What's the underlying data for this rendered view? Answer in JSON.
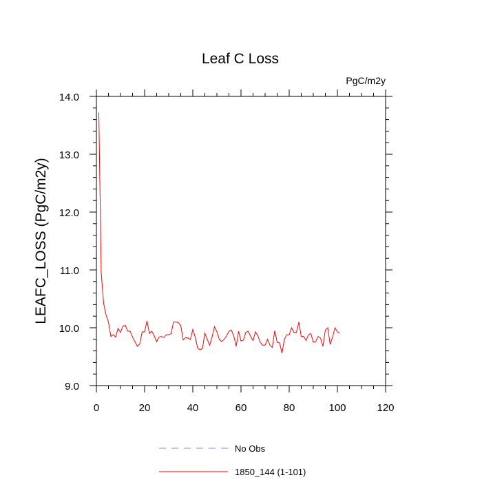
{
  "chart_data": {
    "type": "line",
    "title": "Leaf C Loss",
    "subtitle_right": "PgC/m2y",
    "xlabel": "",
    "ylabel": "LEAFC_LOSS  (PgC/m2y)",
    "xlim": [
      0,
      120
    ],
    "ylim": [
      9.0,
      14.0
    ],
    "xticks": [
      0,
      20,
      40,
      60,
      80,
      100,
      120
    ],
    "xtick_labels": [
      "0",
      "20",
      "40",
      "60",
      "80",
      "100",
      "120"
    ],
    "yticks": [
      9.0,
      10.0,
      11.0,
      12.0,
      13.0,
      14.0
    ],
    "ytick_labels": [
      "9.0",
      "10.0",
      "11.0",
      "12.0",
      "13.0",
      "14.0"
    ],
    "grid": false,
    "legend_position": "bottom",
    "series": [
      {
        "name": "No Obs",
        "color": "#8080ff",
        "dash": "dashed",
        "x": [],
        "y": []
      },
      {
        "name": "1850_144 (1-101)",
        "color": "#ff0000",
        "dash": "solid",
        "x": [
          1,
          2,
          3,
          4,
          5,
          6,
          7,
          8,
          9,
          10,
          11,
          12,
          13,
          14,
          15,
          16,
          17,
          18,
          19,
          20,
          21,
          22,
          23,
          24,
          25,
          26,
          27,
          28,
          29,
          30,
          31,
          32,
          33,
          34,
          35,
          36,
          37,
          38,
          39,
          40,
          41,
          42,
          43,
          44,
          45,
          46,
          47,
          48,
          49,
          50,
          51,
          52,
          53,
          54,
          55,
          56,
          57,
          58,
          59,
          60,
          61,
          62,
          63,
          64,
          65,
          66,
          67,
          68,
          69,
          70,
          71,
          72,
          73,
          74,
          75,
          76,
          77,
          78,
          79,
          80,
          81,
          82,
          83,
          84,
          85,
          86,
          87,
          88,
          89,
          90,
          91,
          92,
          93,
          94,
          95,
          96,
          97,
          98,
          99,
          100,
          101
        ],
        "y": [
          13.72,
          10.95,
          10.42,
          10.22,
          10.1,
          9.85,
          9.88,
          9.84,
          9.99,
          9.92,
          10.03,
          10.04,
          9.94,
          9.94,
          9.84,
          9.76,
          9.68,
          9.72,
          9.93,
          9.93,
          10.12,
          9.9,
          9.94,
          9.86,
          9.76,
          9.84,
          9.85,
          9.83,
          9.88,
          9.88,
          9.9,
          10.1,
          10.1,
          10.09,
          10.04,
          9.79,
          9.83,
          9.82,
          9.8,
          9.97,
          9.84,
          9.65,
          9.62,
          9.64,
          9.91,
          9.8,
          9.7,
          9.84,
          10.02,
          9.93,
          9.8,
          9.76,
          9.8,
          9.86,
          9.94,
          9.96,
          9.86,
          9.68,
          9.94,
          9.77,
          9.79,
          9.92,
          9.94,
          9.85,
          9.78,
          9.93,
          9.86,
          9.75,
          9.7,
          9.7,
          9.8,
          9.7,
          9.66,
          9.95,
          9.75,
          9.74,
          9.56,
          9.8,
          9.88,
          9.88,
          10.0,
          9.92,
          9.92,
          10.1,
          9.85,
          9.85,
          9.78,
          9.88,
          9.9,
          9.75,
          9.76,
          9.85,
          9.82,
          9.68,
          9.96,
          10.0,
          9.71,
          9.84,
          10.0,
          9.93,
          9.91
        ]
      }
    ]
  }
}
